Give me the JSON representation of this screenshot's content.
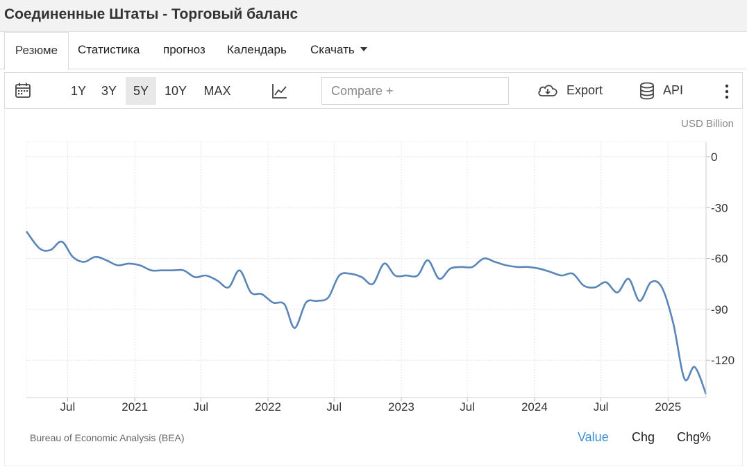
{
  "header": {
    "title": "Соединенные Штаты - Торговый баланс"
  },
  "tabs": [
    {
      "label": "Резюме",
      "active": true
    },
    {
      "label": "Статистика"
    },
    {
      "label": "прогноз"
    },
    {
      "label": "Календарь"
    },
    {
      "label": "Скачать"
    }
  ],
  "toolbar": {
    "calendar_icon": "calendar-icon",
    "ranges": [
      "1Y",
      "3Y",
      "5Y",
      "10Y",
      "MAX"
    ],
    "selected_range": "5Y",
    "chart_type_icon": "line-chart-icon",
    "compare_placeholder": "Compare +",
    "export_label": "Export",
    "export_icon": "cloud-download-icon",
    "api_label": "API",
    "api_icon": "database-icon",
    "more_icon": "more-vertical-icon"
  },
  "chart": {
    "unit": "USD Billion",
    "source": "Bureau of Economic Analysis (BEA)",
    "modes": [
      "Value",
      "Chg",
      "Chg%"
    ],
    "active_mode": "Value",
    "accent_color": "#3d8fd1",
    "line_color": "#5a85b8"
  },
  "chart_data": {
    "type": "line",
    "title": "",
    "xlabel": "",
    "ylabel": "",
    "unit": "USD Billion",
    "y_axis_side": "right",
    "ylim": [
      -142,
      9
    ],
    "yticks": [
      0,
      -30,
      -60,
      -90,
      -120
    ],
    "xlim": [
      "2020-03-10",
      "2025-04-15"
    ],
    "xticks": [
      {
        "date": "2020-07-01",
        "label": "Jul"
      },
      {
        "date": "2021-01-01",
        "label": "2021"
      },
      {
        "date": "2021-07-01",
        "label": "Jul"
      },
      {
        "date": "2022-01-01",
        "label": "2022"
      },
      {
        "date": "2022-07-01",
        "label": "Jul"
      },
      {
        "date": "2023-01-01",
        "label": "2023"
      },
      {
        "date": "2023-07-01",
        "label": "Jul"
      },
      {
        "date": "2024-01-01",
        "label": "2024"
      },
      {
        "date": "2024-07-01",
        "label": "Jul"
      },
      {
        "date": "2025-01-01",
        "label": "2025"
      }
    ],
    "grid": true,
    "series": [
      {
        "name": "",
        "x": [
          "2020-03-10",
          "2020-04-15",
          "2020-05-15",
          "2020-06-15",
          "2020-07-15",
          "2020-08-15",
          "2020-09-15",
          "2020-10-15",
          "2020-11-15",
          "2020-12-15",
          "2021-01-15",
          "2021-02-15",
          "2021-03-15",
          "2021-04-15",
          "2021-05-15",
          "2021-06-15",
          "2021-07-15",
          "2021-08-15",
          "2021-09-15",
          "2021-10-15",
          "2021-11-15",
          "2021-12-15",
          "2022-01-15",
          "2022-02-15",
          "2022-03-15",
          "2022-04-15",
          "2022-05-15",
          "2022-06-15",
          "2022-07-15",
          "2022-08-15",
          "2022-09-15",
          "2022-10-15",
          "2022-11-15",
          "2022-12-15",
          "2023-01-15",
          "2023-02-15",
          "2023-03-15",
          "2023-04-15",
          "2023-05-15",
          "2023-06-15",
          "2023-07-15",
          "2023-08-15",
          "2023-09-15",
          "2023-10-15",
          "2023-11-15",
          "2023-12-15",
          "2024-01-15",
          "2024-02-15",
          "2024-03-15",
          "2024-04-15",
          "2024-05-15",
          "2024-06-15",
          "2024-07-15",
          "2024-08-15",
          "2024-09-15",
          "2024-10-15",
          "2024-11-15",
          "2024-12-15",
          "2025-01-15",
          "2025-02-15",
          "2025-03-15",
          "2025-04-15"
        ],
        "values": [
          -44,
          -54,
          -55,
          -50,
          -59,
          -62,
          -59,
          -61,
          -64,
          -63,
          -64,
          -67,
          -67,
          -67,
          -67,
          -71,
          -70,
          -73,
          -77,
          -67,
          -80,
          -81,
          -86,
          -87,
          -101,
          -86,
          -85,
          -83,
          -70,
          -69,
          -71,
          -75,
          -63,
          -70,
          -70,
          -70,
          -61,
          -72,
          -66,
          -65,
          -65,
          -60,
          -62,
          -64,
          -65,
          -65,
          -66,
          -68,
          -70,
          -69,
          -76,
          -77,
          -74,
          -80,
          -72,
          -85,
          -74,
          -77,
          -98,
          -131,
          -124,
          -140
        ]
      }
    ]
  }
}
